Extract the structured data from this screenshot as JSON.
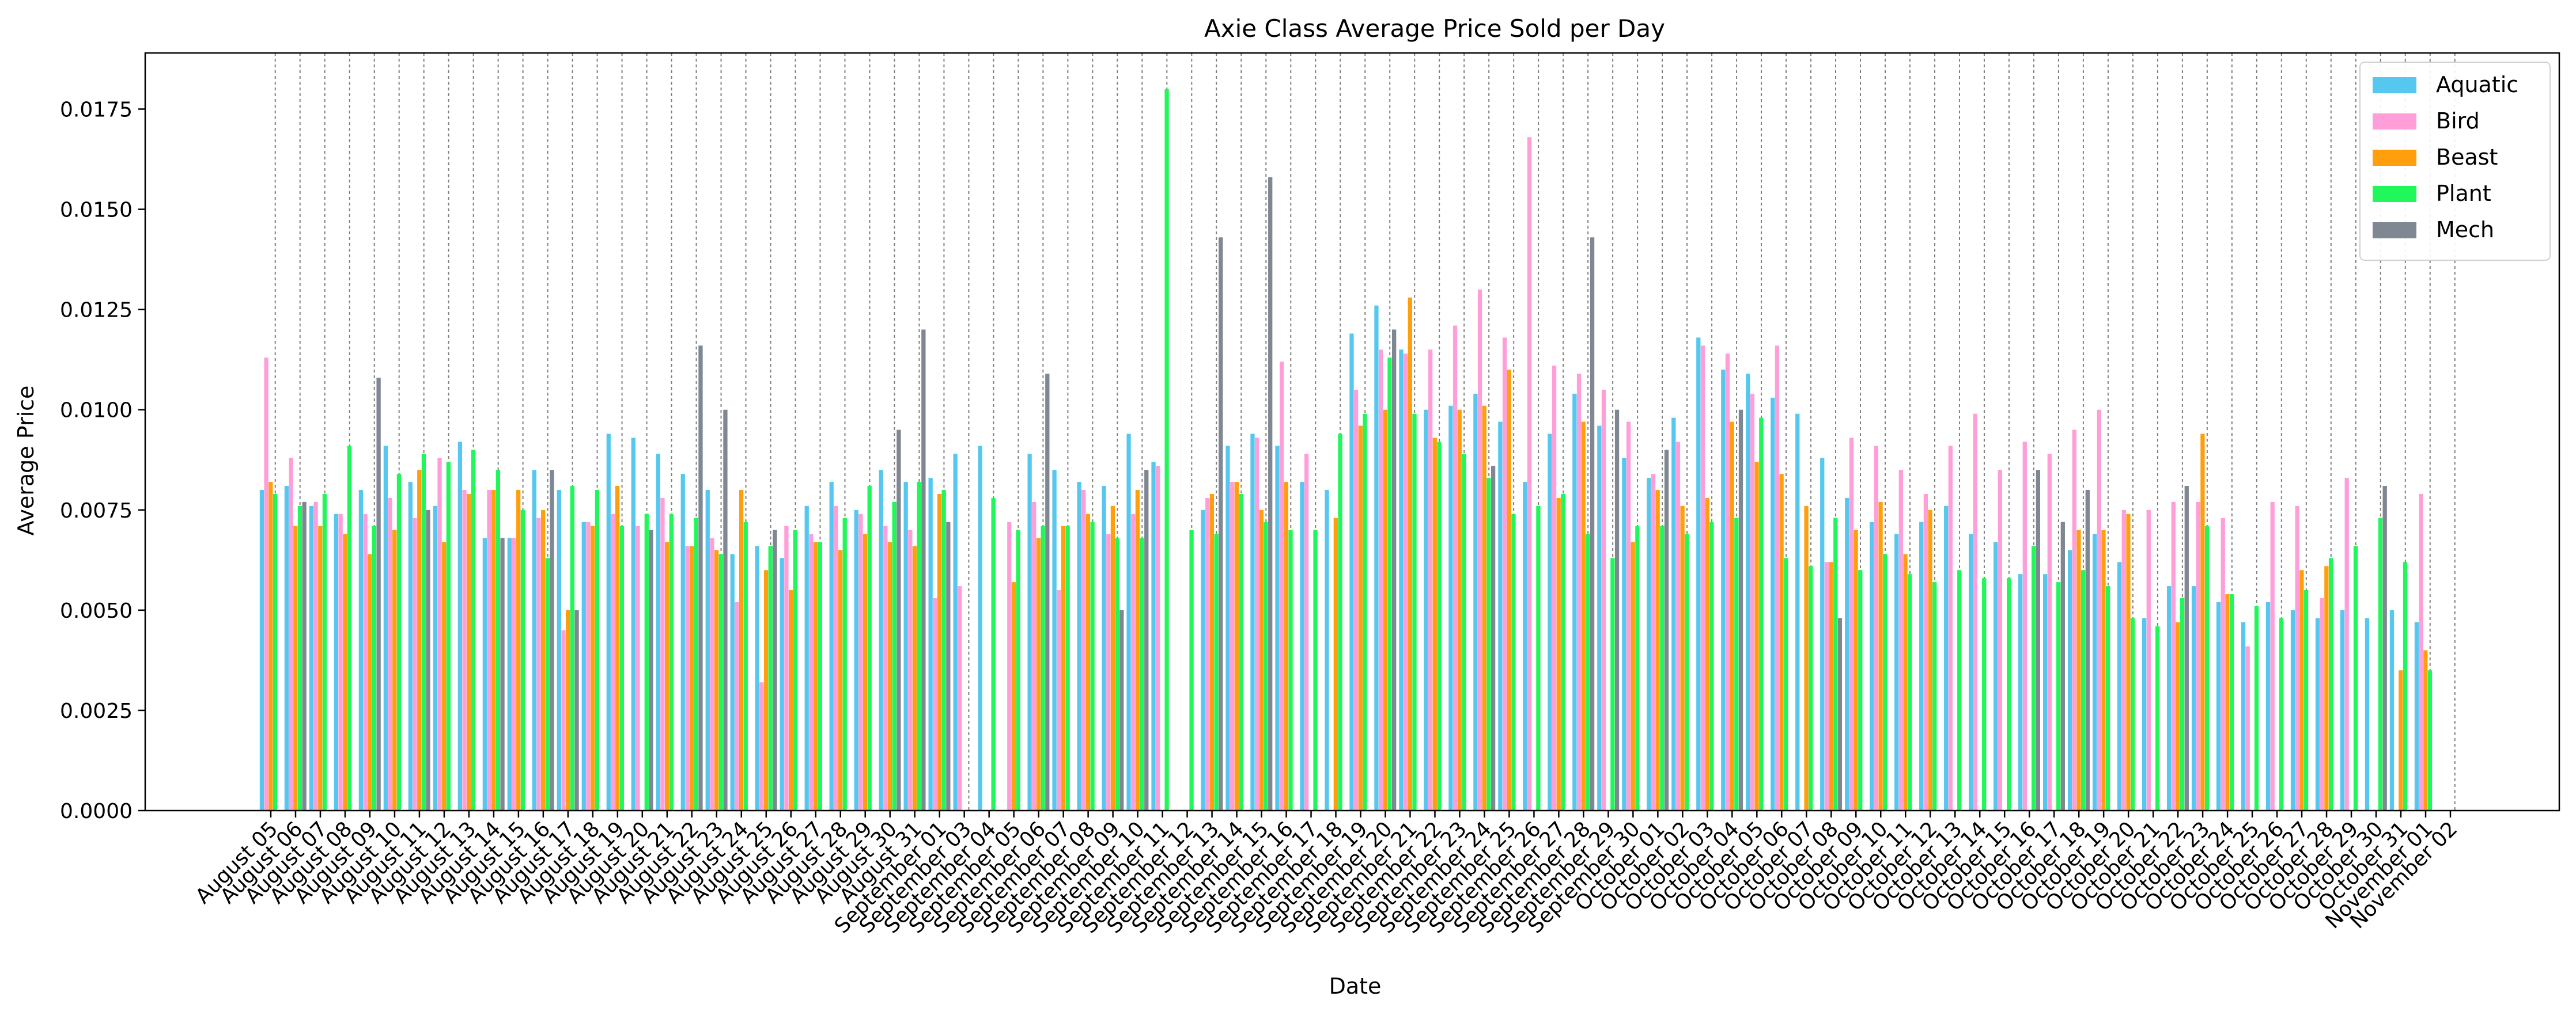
{
  "chart_data": {
    "type": "bar",
    "title": "Axie Class Average Price Sold per Day",
    "xlabel": "Date",
    "ylabel": "Average Price",
    "ylim": [
      0,
      0.0189
    ],
    "yticks": [
      0,
      0.0025,
      0.005,
      0.0075,
      0.01,
      0.0125,
      0.015,
      0.0175
    ],
    "ytick_labels": [
      "0.0000",
      "0.0025",
      "0.0050",
      "0.0075",
      "0.0100",
      "0.0125",
      "0.0150",
      "0.0175"
    ],
    "grid": "vertical dashed at each date",
    "legend_position": "top-right",
    "categories": [
      "August 05",
      "August 06",
      "August 07",
      "August 08",
      "August 09",
      "August 10",
      "August 11",
      "August 12",
      "August 13",
      "August 14",
      "August 15",
      "August 16",
      "August 17",
      "August 18",
      "August 19",
      "August 20",
      "August 21",
      "August 22",
      "August 23",
      "August 24",
      "August 25",
      "August 26",
      "August 27",
      "August 28",
      "August 29",
      "August 30",
      "August 31",
      "September 01",
      "September 03",
      "September 04",
      "September 05",
      "September 06",
      "September 07",
      "September 08",
      "September 09",
      "September 10",
      "September 11",
      "September 12",
      "September 13",
      "September 14",
      "September 15",
      "September 16",
      "September 17",
      "September 18",
      "September 19",
      "September 20",
      "September 21",
      "September 22",
      "September 23",
      "September 24",
      "September 25",
      "September 26",
      "September 27",
      "September 28",
      "September 29",
      "September 30",
      "October 01",
      "October 02",
      "October 03",
      "October 04",
      "October 05",
      "October 06",
      "October 07",
      "October 08",
      "October 09",
      "October 10",
      "October 11",
      "October 12",
      "October 13",
      "October 14",
      "October 15",
      "October 16",
      "October 17",
      "October 18",
      "October 19",
      "October 20",
      "October 21",
      "October 22",
      "October 23",
      "October 24",
      "October 25",
      "October 26",
      "October 27",
      "October 28",
      "October 29",
      "October 30",
      "October 31",
      "November 01",
      "November 02"
    ],
    "series": [
      {
        "name": "Aquatic",
        "color": "#56c8f0",
        "values": [
          0.008,
          0.0081,
          0.0076,
          0.0074,
          0.008,
          0.0091,
          0.0082,
          0.0076,
          0.0092,
          0.0068,
          0.0068,
          0.0085,
          0.008,
          0.0072,
          0.0094,
          0.0093,
          0.0089,
          0.0084,
          0.008,
          0.0064,
          0.0066,
          0.0063,
          0.0076,
          0.0082,
          0.0075,
          0.0085,
          0.0082,
          0.0083,
          0.0089,
          0.0091,
          0.0,
          0.0089,
          0.0085,
          0.0082,
          0.0081,
          0.0094,
          0.0087,
          0.0,
          0.0075,
          0.0091,
          0.0094,
          0.0091,
          0.0082,
          0.008,
          0.0119,
          0.0126,
          0.0115,
          0.01,
          0.0101,
          0.0104,
          0.0097,
          0.0082,
          0.0094,
          0.0104,
          0.0096,
          0.0088,
          0.0083,
          0.0098,
          0.0118,
          0.011,
          0.0109,
          0.0103,
          0.0099,
          0.0088,
          0.0078,
          0.0072,
          0.0069,
          0.0072,
          0.0076,
          0.0069,
          0.0067,
          0.0059,
          0.0059,
          0.0065,
          0.0069,
          0.0062,
          0.0048,
          0.0056,
          0.0056,
          0.0052,
          0.0047,
          0.0052,
          0.005,
          0.0048,
          0.005,
          0.0048,
          0.005,
          0.0047,
          0.0
        ]
      },
      {
        "name": "Bird",
        "color": "#ff9ed8",
        "values": [
          0.0113,
          0.0088,
          0.0077,
          0.0074,
          0.0074,
          0.0078,
          0.0073,
          0.0088,
          0.008,
          0.008,
          0.0068,
          0.0073,
          0.0045,
          0.0072,
          0.0074,
          0.0071,
          0.0078,
          0.0066,
          0.0068,
          0.0052,
          0.0032,
          0.0071,
          0.0069,
          0.0076,
          0.0074,
          0.0071,
          0.007,
          0.0053,
          0.0056,
          0.0,
          0.0072,
          0.0077,
          0.0055,
          0.008,
          0.0069,
          0.0074,
          0.0086,
          0.0,
          0.0078,
          0.0082,
          0.0093,
          0.0112,
          0.0089,
          0.0,
          0.0105,
          0.0115,
          0.0114,
          0.0115,
          0.0121,
          0.013,
          0.0118,
          0.0168,
          0.0111,
          0.0109,
          0.0105,
          0.0097,
          0.0084,
          0.0092,
          0.0116,
          0.0114,
          0.0104,
          0.0116,
          0.0,
          0.0062,
          0.0093,
          0.0091,
          0.0085,
          0.0079,
          0.0091,
          0.0099,
          0.0085,
          0.0092,
          0.0089,
          0.0095,
          0.01,
          0.0075,
          0.0075,
          0.0077,
          0.0077,
          0.0073,
          0.0041,
          0.0077,
          0.0076,
          0.0053,
          0.0083,
          0.0,
          0.0,
          0.0079,
          0.0
        ]
      },
      {
        "name": "Beast",
        "color": "#ff9f0e",
        "values": [
          0.0082,
          0.0071,
          0.0071,
          0.0069,
          0.0064,
          0.007,
          0.0085,
          0.0067,
          0.0079,
          0.008,
          0.008,
          0.0075,
          0.005,
          0.0071,
          0.0081,
          0.0,
          0.0067,
          0.0066,
          0.0065,
          0.008,
          0.006,
          0.0055,
          0.0067,
          0.0065,
          0.0069,
          0.0067,
          0.0066,
          0.0079,
          0.0,
          0.0,
          0.0057,
          0.0068,
          0.0071,
          0.0074,
          0.0076,
          0.008,
          0.0,
          0.0,
          0.0079,
          0.0082,
          0.0075,
          0.0082,
          0.0,
          0.0073,
          0.0096,
          0.01,
          0.0128,
          0.0093,
          0.01,
          0.0101,
          0.011,
          0.0,
          0.0078,
          0.0097,
          0.0,
          0.0067,
          0.008,
          0.0076,
          0.0078,
          0.0097,
          0.0087,
          0.0084,
          0.0076,
          0.0062,
          0.007,
          0.0077,
          0.0064,
          0.0075,
          0.0,
          0.0,
          0.0,
          0.0,
          0.0,
          0.007,
          0.007,
          0.0074,
          0.0,
          0.0047,
          0.0094,
          0.0054,
          0.0,
          0.0,
          0.006,
          0.0061,
          0.0,
          0.0,
          0.0035,
          0.004,
          0.0
        ]
      },
      {
        "name": "Plant",
        "color": "#20f75a",
        "values": [
          0.0079,
          0.0076,
          0.0079,
          0.0091,
          0.0071,
          0.0084,
          0.0089,
          0.0087,
          0.009,
          0.0085,
          0.0075,
          0.0063,
          0.0081,
          0.008,
          0.0071,
          0.0074,
          0.0074,
          0.0073,
          0.0064,
          0.0072,
          0.0066,
          0.007,
          0.0067,
          0.0073,
          0.0081,
          0.0077,
          0.0082,
          0.008,
          0.0,
          0.0078,
          0.007,
          0.0071,
          0.0071,
          0.0072,
          0.0068,
          0.0068,
          0.018,
          0.007,
          0.0069,
          0.0079,
          0.0072,
          0.007,
          0.007,
          0.0094,
          0.0099,
          0.0113,
          0.0099,
          0.0092,
          0.0089,
          0.0083,
          0.0074,
          0.0076,
          0.0079,
          0.0069,
          0.0063,
          0.0071,
          0.0071,
          0.0069,
          0.0072,
          0.0073,
          0.0098,
          0.0063,
          0.0061,
          0.0073,
          0.006,
          0.0064,
          0.0059,
          0.0057,
          0.006,
          0.0058,
          0.0058,
          0.0066,
          0.0057,
          0.006,
          0.0056,
          0.0048,
          0.0046,
          0.0053,
          0.0071,
          0.0054,
          0.0051,
          0.0048,
          0.0055,
          0.0063,
          0.0066,
          0.0073,
          0.0062,
          0.0035,
          0.0
        ]
      },
      {
        "name": "Mech",
        "color": "#7f8792",
        "values": [
          0.0,
          0.0077,
          0.0,
          0.0,
          0.0108,
          0.0,
          0.0075,
          0.0,
          0.0,
          0.0068,
          0.0,
          0.0085,
          0.005,
          0.0,
          0.0,
          0.007,
          0.0,
          0.0116,
          0.01,
          0.0,
          0.007,
          0.0,
          0.0,
          0.0,
          0.0,
          0.0095,
          0.012,
          0.0072,
          0.0,
          0.0,
          0.0,
          0.0109,
          0.0,
          0.0,
          0.005,
          0.0085,
          0.0,
          0.0,
          0.0143,
          0.0,
          0.0158,
          0.0,
          0.0,
          0.0,
          0.0,
          0.012,
          0.0,
          0.0,
          0.0,
          0.0086,
          0.0,
          0.0,
          0.0,
          0.0143,
          0.01,
          0.0,
          0.009,
          0.0,
          0.0,
          0.01,
          0.0,
          0.0,
          0.0,
          0.0048,
          0.0,
          0.0,
          0.0,
          0.0,
          0.0,
          0.0,
          0.0,
          0.0085,
          0.0072,
          0.008,
          0.0,
          0.0,
          0.0,
          0.0081,
          0.0,
          0.0,
          0.0,
          0.0,
          0.0,
          0.0,
          0.0,
          0.0081,
          0.0,
          0.0,
          0.0
        ]
      }
    ]
  }
}
